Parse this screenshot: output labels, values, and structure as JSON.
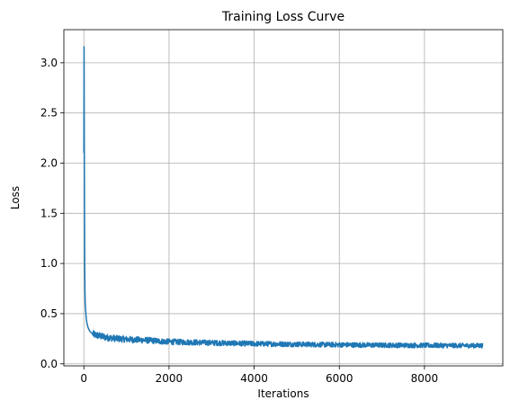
{
  "chart_data": {
    "type": "line",
    "title": "Training Loss Curve",
    "xlabel": "Iterations",
    "ylabel": "Loss",
    "xlim": [
      -470,
      9840
    ],
    "ylim": [
      -0.02,
      3.33
    ],
    "xticks": [
      0,
      2000,
      4000,
      6000,
      8000
    ],
    "yticks": [
      0.0,
      0.5,
      1.0,
      1.5,
      2.0,
      2.5,
      3.0
    ],
    "xtick_labels": [
      "0",
      "2000",
      "4000",
      "6000",
      "8000"
    ],
    "ytick_labels": [
      "0.0",
      "0.5",
      "1.0",
      "1.5",
      "2.0",
      "2.5",
      "3.0"
    ],
    "grid": true,
    "series": [
      {
        "color": "#1f77b4",
        "x": [
          0,
          5,
          10,
          15,
          20,
          25,
          30,
          40,
          50,
          60,
          70,
          80,
          100,
          120,
          150,
          200,
          250,
          300,
          400,
          500,
          600,
          800,
          1000,
          1200,
          1500,
          1800,
          2000,
          2500,
          3000,
          3500,
          4000,
          4500,
          5000,
          5500,
          6000,
          6500,
          7000,
          7500,
          8000,
          8500,
          9000,
          9370
        ],
        "y": [
          2.1,
          3.16,
          2.2,
          1.5,
          1.0,
          0.75,
          0.62,
          0.55,
          0.48,
          0.44,
          0.41,
          0.39,
          0.36,
          0.34,
          0.32,
          0.3,
          0.29,
          0.285,
          0.275,
          0.265,
          0.26,
          0.25,
          0.245,
          0.24,
          0.235,
          0.225,
          0.22,
          0.215,
          0.21,
          0.205,
          0.2,
          0.198,
          0.195,
          0.192,
          0.19,
          0.188,
          0.186,
          0.185,
          0.184,
          0.183,
          0.182,
          0.182
        ]
      }
    ]
  }
}
